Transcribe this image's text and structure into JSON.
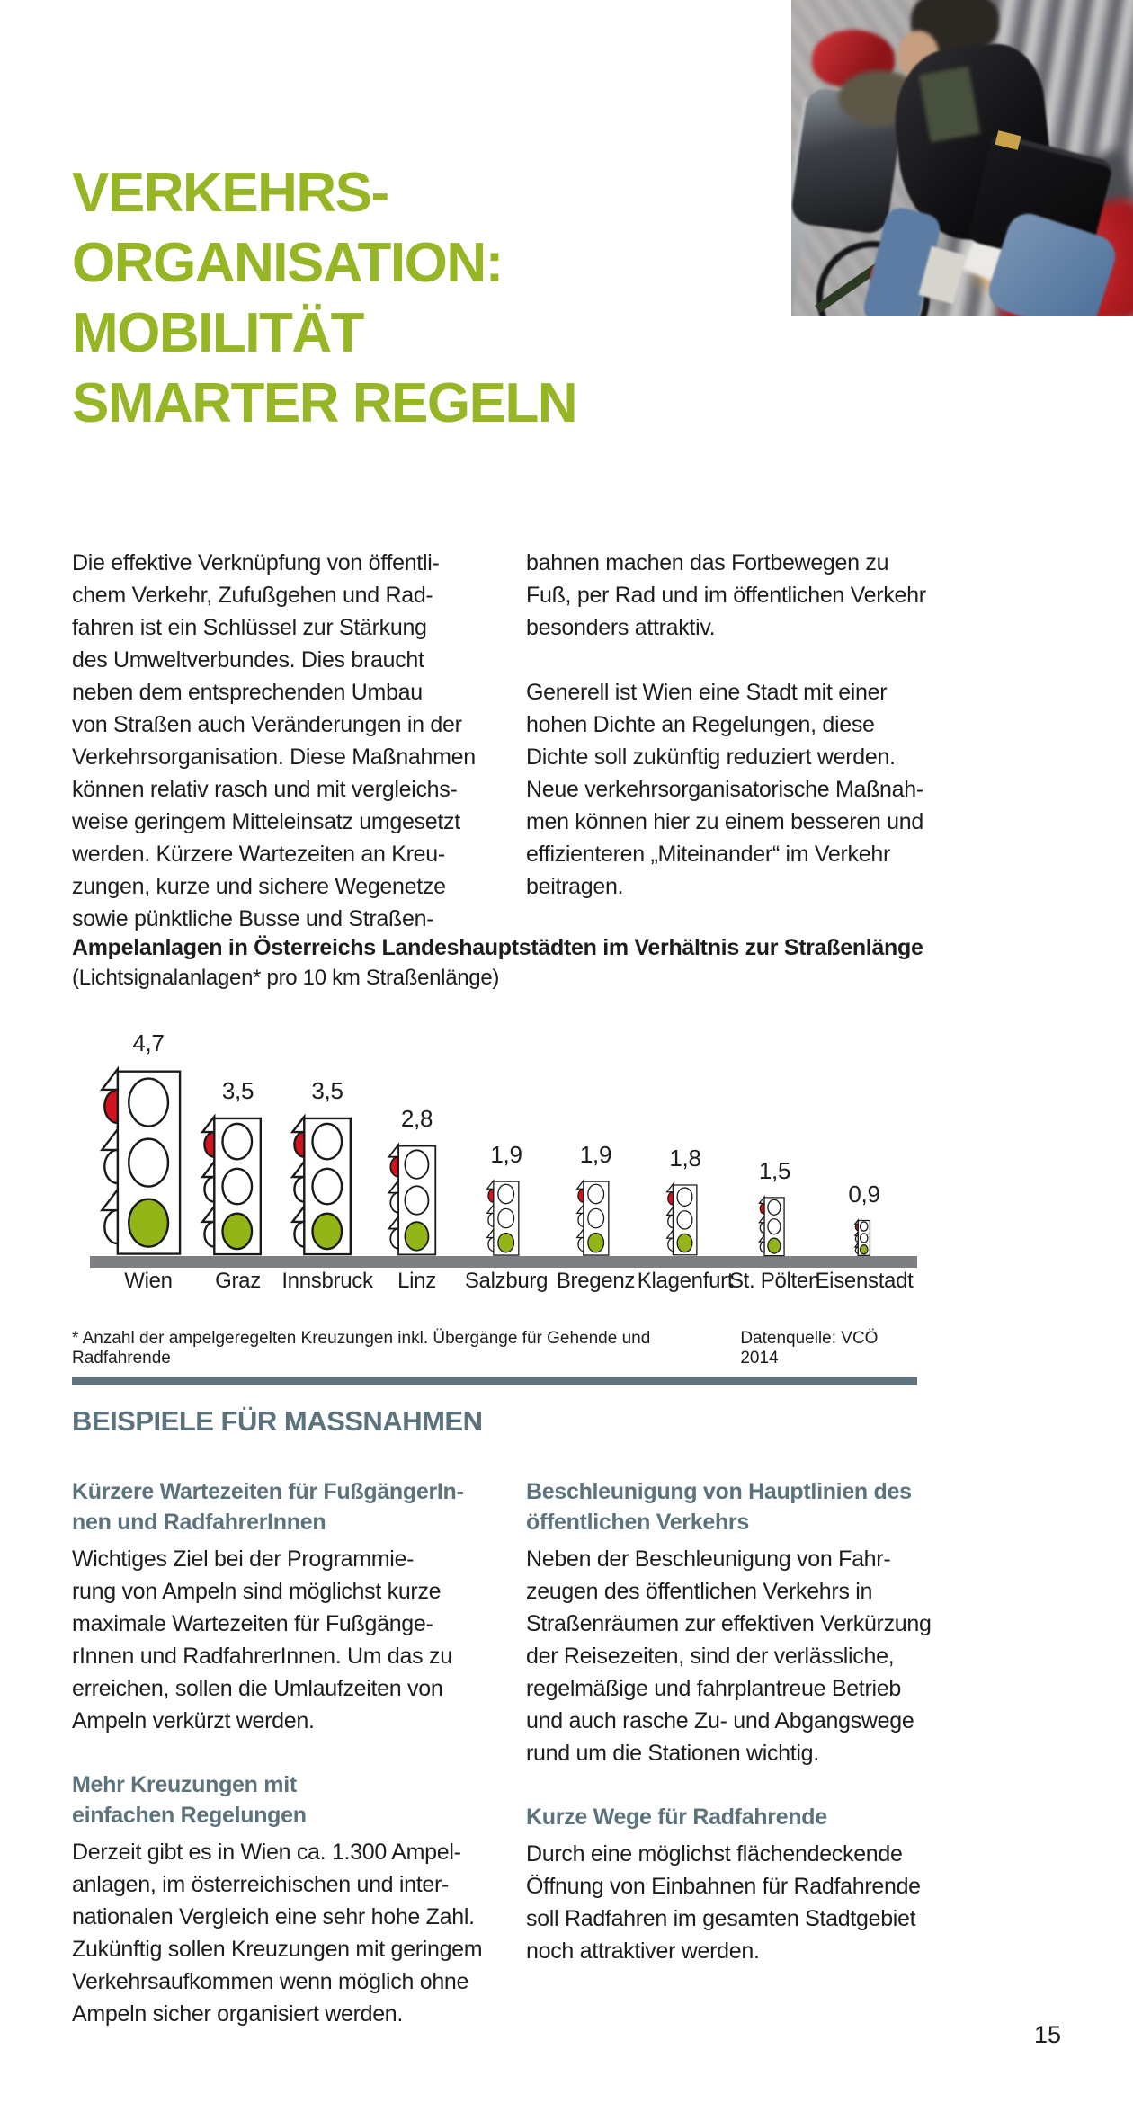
{
  "page": {
    "number": "15"
  },
  "title": {
    "lines": [
      "VERKEHRS-",
      "ORGANISATION:",
      "MOBILITÄT",
      "SMARTER REGELN"
    ],
    "color": "#96b626"
  },
  "photo": {
    "description": "cyclist-with-red-helmet-on-city-street"
  },
  "intro": {
    "left": "Die effektive Verknüpfung von öffentli-\nchem Verkehr, Zufußgehen und Rad-\nfahren ist ein Schlüssel zur Stärkung\ndes Umweltverbundes. Dies braucht\nneben dem entsprechenden Umbau\nvon Straßen auch Veränderungen in der\nVerkehrsorganisation. Diese Maßnahmen\nkönnen relativ rasch und mit vergleichs-\nweise geringem Mitteleinsatz umgesetzt\nwerden. Kürzere Wartezeiten an Kreu-\nzungen, kurze und sichere Wegenetze\nsowie pünktliche Busse und Straßen-",
    "right_p1": "bahnen machen das Fortbewegen zu\nFuß, per Rad und im öffentlichen Verkehr\nbesonders attraktiv.",
    "right_p2": "Generell ist Wien eine Stadt mit einer\nhohen Dichte an Regelungen, diese\nDichte soll zukünftig reduziert werden.\nNeue verkehrsorganisatorische Maßnah-\nmen können hier zu einem besseren und\neffizienteren „Miteinander“ im Verkehr\nbeitragen."
  },
  "chart_data": {
    "type": "bar",
    "style": "pictogram-traffic-lights",
    "title": "Ampelanlagen in Österreichs Landeshauptstädten im Verhältnis zur Straßenlänge",
    "subtitle": "(Lichtsignalanlagen* pro 10 km Straßenlänge)",
    "categories": [
      "Wien",
      "Graz",
      "Innsbruck",
      "Linz",
      "Salzburg",
      "Bregenz",
      "Klagenfurt",
      "St. Pölten",
      "Eisenstadt"
    ],
    "values": [
      4.7,
      3.5,
      3.5,
      2.8,
      1.9,
      1.9,
      1.8,
      1.5,
      0.9
    ],
    "value_labels": [
      "4,7",
      "3,5",
      "3,5",
      "2,8",
      "1,9",
      "1,9",
      "1,8",
      "1,5",
      "0,9"
    ],
    "footnote": "* Anzahl der ampelgeregelten Kreuzungen inkl. Übergänge für Gehende und Radfahrende",
    "source": "Datenquelle: VCÖ 2014",
    "xlabel": "",
    "ylabel": "",
    "grid": false,
    "legend": false,
    "colors": {
      "green": "#93b517",
      "red": "#d3131e",
      "outline": "#1a1a1a",
      "baseline": "#7d7f82"
    }
  },
  "sections": {
    "heading": "BEISPIELE FÜR MASSNAHMEN",
    "heading_color": "#5c737e",
    "left": [
      {
        "title": "Kürzere Wartezeiten für FußgängerIn-\nnen und RadfahrerInnen",
        "body": "Wichtiges Ziel bei der Programmie-\nrung von Ampeln sind möglichst kurze\nmaximale Wartezeiten für Fußgänge-\nrInnen und RadfahrerInnen. Um das zu\nerreichen, sollen die Umlaufzeiten von\nAmpeln verkürzt werden."
      },
      {
        "title": "Mehr Kreuzungen mit\neinfachen Regelungen",
        "body": "Derzeit gibt es in Wien ca. 1.300 Ampel-\nanlagen, im österreichischen und inter-\nnationalen Vergleich eine sehr hohe Zahl.\nZukünftig sollen Kreuzungen mit geringem\nVerkehrsaufkommen wenn möglich ohne\nAmpeln sicher organisiert werden."
      }
    ],
    "right": [
      {
        "title": "Beschleunigung von Hauptlinien des\nöffentlichen Verkehrs",
        "body": "Neben der Beschleunigung von Fahr-\nzeugen des öffentlichen Verkehrs in\nStraßenräumen zur effektiven Verkürzung\nder Reisezeiten, sind der verlässliche,\nregelmäßige und fahrplantreue Betrieb\nund auch rasche Zu- und Abgangswege\nrund um die Stationen wichtig."
      },
      {
        "title": "Kurze Wege für Radfahrende",
        "body": "Durch eine möglichst flächendeckende\nÖffnung von Einbahnen für Radfahrende\nsoll Radfahren im gesamten Stadtgebiet\nnoch attraktiver werden."
      }
    ]
  }
}
